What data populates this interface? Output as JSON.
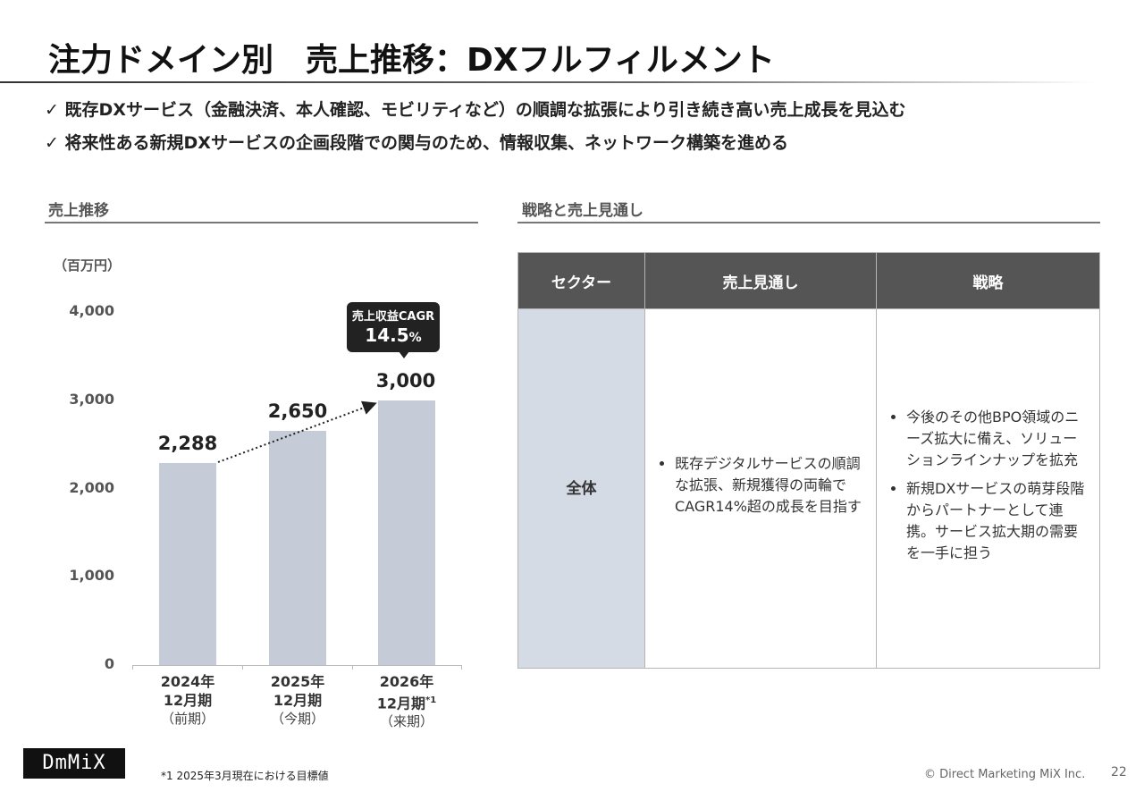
{
  "title": "注力ドメイン別　売上推移：DXフルフィルメント",
  "bullets": [
    "✓ 既存DXサービス（金融決済、本人確認、モビリティなど）の順調な拡張により引き続き高い売上成長を見込む",
    "✓ 将来性ある新規DXサービスの企画段階での関与のため、情報収集、ネットワーク構築を進める"
  ],
  "left_section": "売上推移",
  "right_section": "戦略と売上見通し",
  "callout": {
    "line1": "売上収益CAGR",
    "value": "14.5",
    "unit": "%"
  },
  "chart_data": {
    "type": "bar",
    "unit": "（百万円）",
    "yticks": [
      "4,000",
      "3,000",
      "2,000",
      "1,000",
      "0"
    ],
    "ylim": [
      0,
      4000
    ],
    "categories": [
      {
        "year": "2024年",
        "period": "12月期",
        "sup": "",
        "note": "（前期）"
      },
      {
        "year": "2025年",
        "period": "12月期",
        "sup": "",
        "note": "（今期）"
      },
      {
        "year": "2026年",
        "period": "12月期",
        "sup": "*1",
        "note": "（来期）"
      }
    ],
    "values": [
      2288,
      2650,
      3000
    ],
    "value_labels": [
      "2,288",
      "2,650",
      "3,000"
    ],
    "colors": {
      "bar": "#c5ccd8"
    }
  },
  "table": {
    "headers": [
      "セクター",
      "売上見通し",
      "戦略"
    ],
    "sector": "全体",
    "outlook": [
      "既存デジタルサービスの順調な拡張、新規獲得の両輪でCAGR14%超の成長を目指す"
    ],
    "strategy": [
      "今後のその他BPO領域のニーズ拡大に備え、ソリューションラインナップを拡充",
      "新規DXサービスの萌芽段階からパートナーとして連携。サービス拡大期の需要を一手に担う"
    ],
    "colors": {
      "header": "#555555",
      "sector": "#d5dbe5"
    }
  },
  "footer": {
    "logo": "DmMiX",
    "footnote": "*1  2025年3月現在における目標値",
    "copyright": "© Direct Marketing MiX Inc.",
    "page": "22"
  }
}
